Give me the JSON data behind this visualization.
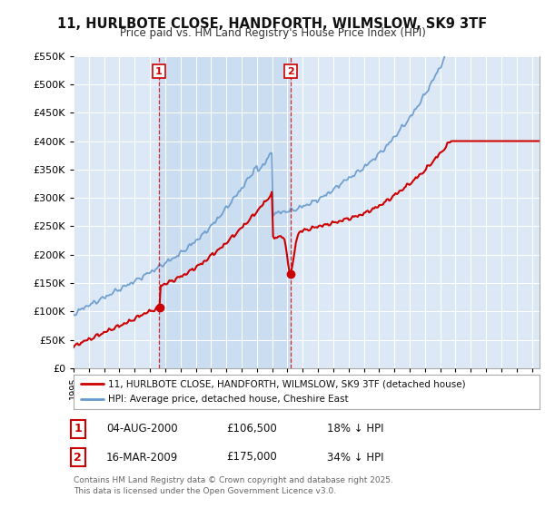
{
  "title": "11, HURLBOTE CLOSE, HANDFORTH, WILMSLOW, SK9 3TF",
  "subtitle": "Price paid vs. HM Land Registry's House Price Index (HPI)",
  "background_color": "#ffffff",
  "plot_bg_color": "#dce8f5",
  "shaded_region_color": "#c8dcf0",
  "grid_color": "#ffffff",
  "hpi_color": "#6699cc",
  "price_color": "#cc0000",
  "marker1_year": 2000.59,
  "marker2_year": 2009.21,
  "marker1_price": 106500,
  "marker2_price": 175000,
  "legend_line1": "11, HURLBOTE CLOSE, HANDFORTH, WILMSLOW, SK9 3TF (detached house)",
  "legend_line2": "HPI: Average price, detached house, Cheshire East",
  "footer": "Contains HM Land Registry data © Crown copyright and database right 2025.\nThis data is licensed under the Open Government Licence v3.0.",
  "ylim": [
    0,
    550000
  ],
  "yticks": [
    0,
    50000,
    100000,
    150000,
    200000,
    250000,
    300000,
    350000,
    400000,
    450000,
    500000,
    550000
  ],
  "xlim_start": 1995,
  "xlim_end": 2025.5
}
